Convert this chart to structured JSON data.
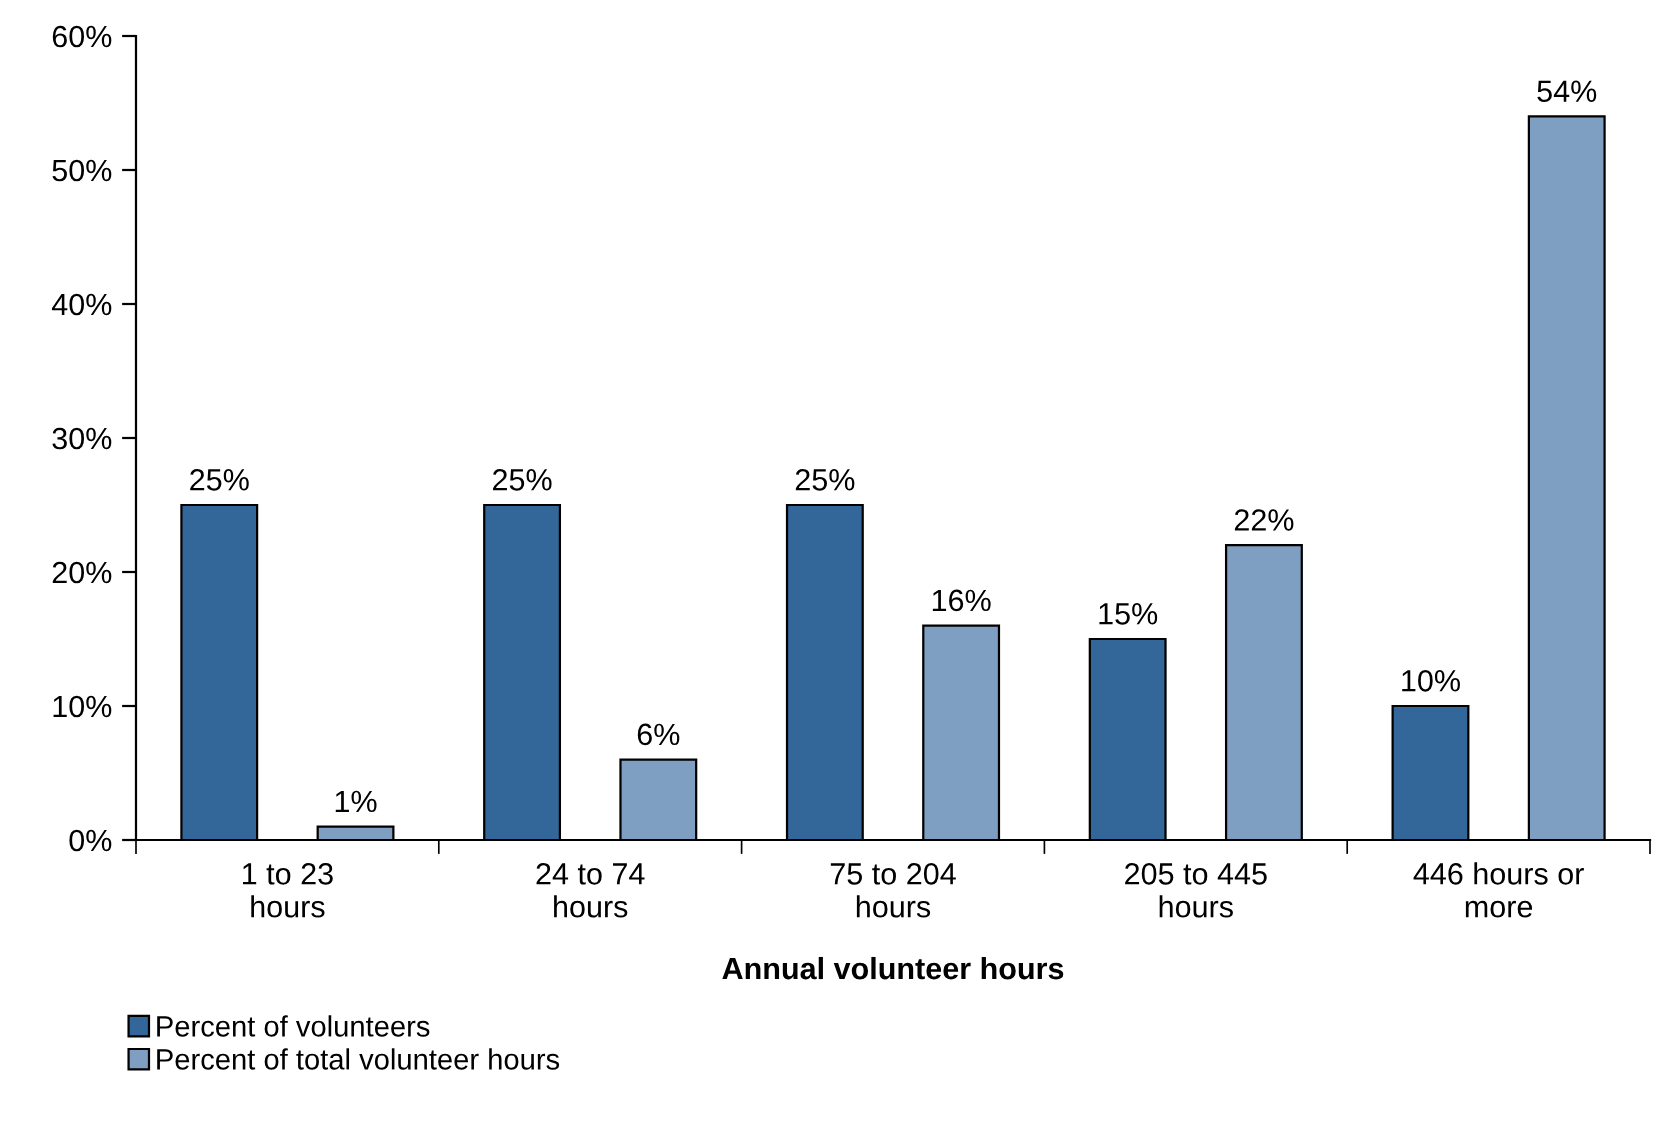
{
  "chart_data": {
    "type": "bar",
    "xlabel": "Annual volunteer hours",
    "categories": [
      "1 to 23\nhours",
      "24 to 74\nhours",
      "75 to 204\nhours",
      "205 to 445\nhours",
      "446 hours or\nmore"
    ],
    "series": [
      {
        "name": "Percent of volunteers",
        "color": "#336699",
        "values": [
          25,
          25,
          25,
          15,
          10
        ],
        "value_labels": [
          "25%",
          "25%",
          "25%",
          "15%",
          "10%"
        ]
      },
      {
        "name": "Percent of total volunteer hours",
        "color": "#7f9fc2",
        "values": [
          1,
          6,
          16,
          22,
          54
        ],
        "value_labels": [
          "1%",
          "6%",
          "16%",
          "22%",
          "54%"
        ]
      }
    ],
    "ylim": [
      0,
      60
    ],
    "yticks": [
      {
        "value": 0,
        "label": "0%"
      },
      {
        "value": 10,
        "label": "10%"
      },
      {
        "value": 20,
        "label": "20%"
      },
      {
        "value": 30,
        "label": "30%"
      },
      {
        "value": 40,
        "label": "40%"
      },
      {
        "value": 50,
        "label": "50%"
      },
      {
        "value": 60,
        "label": "60%"
      }
    ],
    "grid": false,
    "legend": "bottom left"
  }
}
